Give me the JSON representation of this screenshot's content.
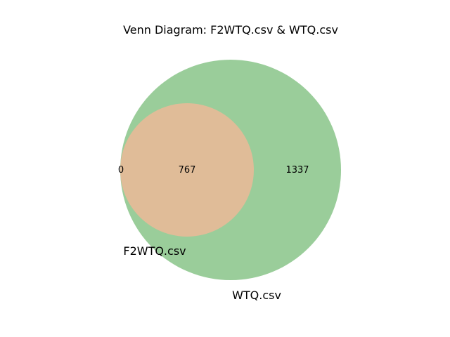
{
  "diagram": {
    "title": "Venn Diagram: F2WTQ.csv & WTQ.csv",
    "sets": [
      {
        "name": "F2WTQ.csv",
        "color": "#ebb48a"
      },
      {
        "name": "WTQ.csv",
        "color": "#9acd9a"
      }
    ],
    "overlap_color": "#e0bc98",
    "regions": {
      "only_f2wtq": "0",
      "both": "767",
      "only_wtq": "1337"
    }
  }
}
